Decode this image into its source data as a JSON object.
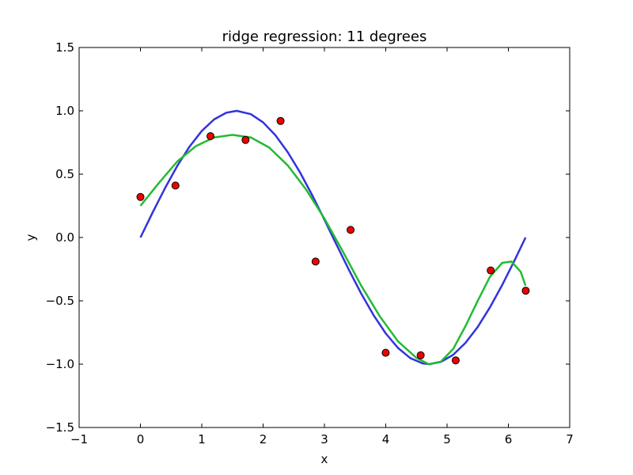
{
  "chart_data": {
    "type": "line",
    "title": "ridge regression: 11 degrees",
    "xlabel": "x",
    "ylabel": "y",
    "xlim": [
      -1,
      7
    ],
    "ylim": [
      -1.5,
      1.5
    ],
    "xticks": [
      -1,
      0,
      1,
      2,
      3,
      4,
      5,
      6,
      7
    ],
    "yticks": [
      -1.5,
      -1.0,
      -0.5,
      0.0,
      0.5,
      1.0,
      1.5
    ],
    "xtick_labels": [
      "−1",
      "0",
      "1",
      "2",
      "3",
      "4",
      "5",
      "6",
      "7"
    ],
    "ytick_labels": [
      "−1.5",
      "−1.0",
      "−0.5",
      "0.0",
      "0.5",
      "1.0",
      "1.5"
    ],
    "grid": false,
    "colors": {
      "true_curve": "#3333dd",
      "fit_curve": "#22bb33",
      "points": "#ee0000"
    },
    "series": [
      {
        "kind": "line",
        "x": [
          0,
          0.2,
          0.4,
          0.6,
          0.8,
          1.0,
          1.2,
          1.4,
          1.57,
          1.8,
          2.0,
          2.2,
          2.4,
          2.6,
          2.8,
          3.0,
          3.14,
          3.4,
          3.6,
          3.8,
          4.0,
          4.2,
          4.4,
          4.6,
          4.71,
          4.9,
          5.1,
          5.3,
          5.5,
          5.7,
          5.9,
          6.1,
          6.28
        ],
        "y": [
          0.0,
          0.199,
          0.389,
          0.565,
          0.717,
          0.841,
          0.932,
          0.985,
          1.0,
          0.974,
          0.909,
          0.808,
          0.675,
          0.516,
          0.335,
          0.141,
          0.0,
          -0.256,
          -0.443,
          -0.612,
          -0.757,
          -0.872,
          -0.952,
          -0.994,
          -1.0,
          -0.982,
          -0.926,
          -0.832,
          -0.706,
          -0.551,
          -0.374,
          -0.182,
          0.0
        ]
      },
      {
        "kind": "line",
        "x": [
          0,
          0.3,
          0.6,
          0.9,
          1.2,
          1.5,
          1.8,
          2.1,
          2.4,
          2.7,
          3.0,
          3.3,
          3.6,
          3.9,
          4.2,
          4.5,
          4.7,
          4.9,
          5.1,
          5.3,
          5.5,
          5.7,
          5.9,
          6.05,
          6.2,
          6.28
        ],
        "y": [
          0.25,
          0.43,
          0.6,
          0.72,
          0.79,
          0.81,
          0.79,
          0.71,
          0.57,
          0.38,
          0.15,
          -0.11,
          -0.38,
          -0.62,
          -0.82,
          -0.95,
          -1.0,
          -0.98,
          -0.88,
          -0.7,
          -0.5,
          -0.31,
          -0.2,
          -0.19,
          -0.27,
          -0.38
        ]
      },
      {
        "kind": "scatter",
        "x": [
          0.0,
          0.571,
          1.142,
          1.714,
          2.285,
          2.856,
          3.427,
          3.999,
          4.57,
          5.141,
          5.712,
          6.283
        ],
        "y": [
          0.32,
          0.41,
          0.8,
          0.77,
          0.92,
          -0.19,
          0.06,
          -0.91,
          -0.93,
          -0.97,
          -0.26,
          -0.42
        ]
      }
    ]
  }
}
